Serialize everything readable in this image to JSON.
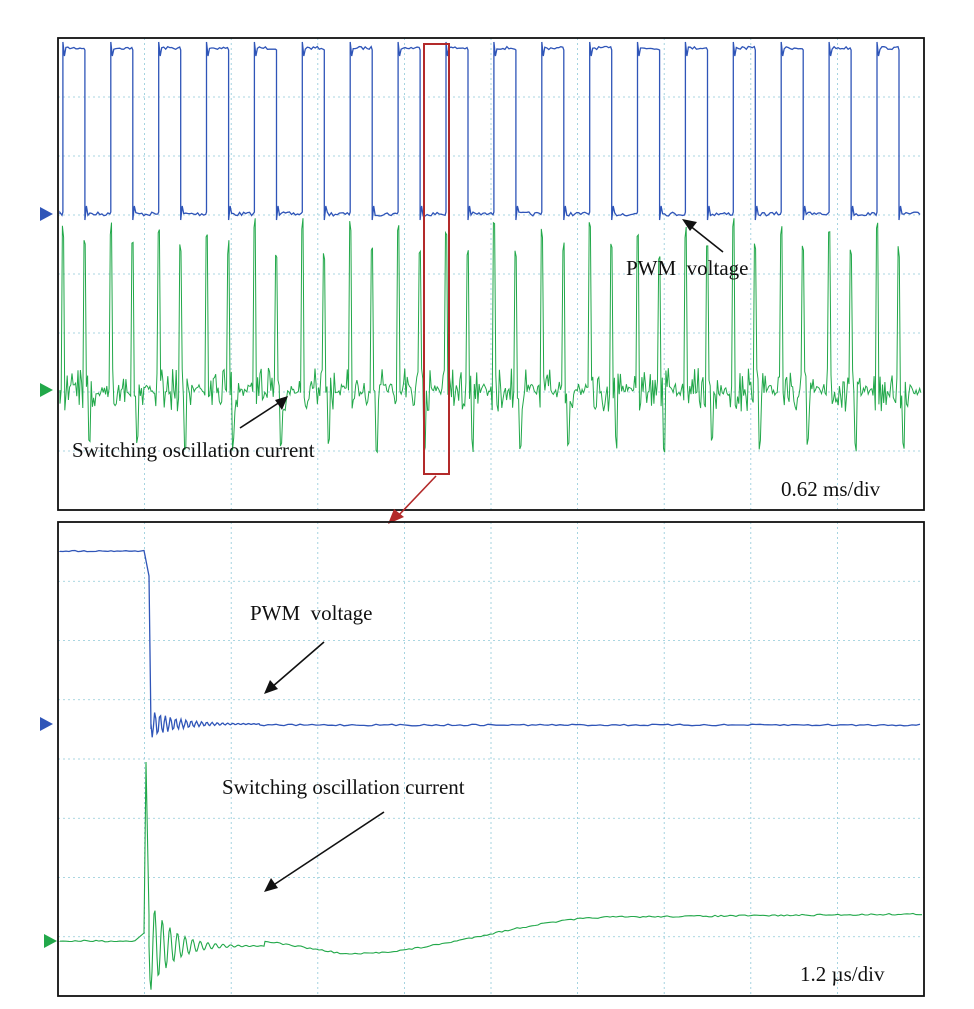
{
  "colors": {
    "pwm_voltage": "#2f55b8",
    "switching_current": "#22a84a",
    "zoom_box": "#b32a2a",
    "grid": "#8fc9d8"
  },
  "chart_data": [
    {
      "type": "line",
      "title": "",
      "xlabel": "",
      "ylabel": "",
      "grid": true,
      "divisions": {
        "x": 10,
        "y": 8
      },
      "time_scale": "0.62 ms/div",
      "series": [
        {
          "name": "PWM voltage",
          "color": "#2f55b8",
          "description_level": "square wave between ~0 and ~1 (normalized), 18 periods"
        },
        {
          "name": "Switching oscillation current",
          "color": "#22a84a",
          "description_level": "noise with spikes at each edge"
        }
      ],
      "pwm_periods": 18,
      "annotations": [
        "PWM voltage",
        "Switching oscillation current"
      ]
    },
    {
      "type": "line",
      "title": "",
      "xlabel": "",
      "ylabel": "",
      "grid": true,
      "divisions": {
        "x": 10,
        "y": 8
      },
      "time_scale": "1.2 µs/div",
      "series": [
        {
          "name": "PWM voltage",
          "color": "#2f55b8"
        },
        {
          "name": "Switching oscillation current",
          "color": "#22a84a"
        }
      ],
      "annotations": [
        "PWM voltage",
        "Switching oscillation current"
      ]
    }
  ],
  "labels": {
    "top_pwm": "PWM  voltage",
    "top_current": "Switching oscillation current",
    "top_scale": "0.62 ms/div",
    "bottom_pwm": "PWM  voltage",
    "bottom_current": "Switching oscillation current",
    "bottom_scale": "1.2 µs/div"
  }
}
